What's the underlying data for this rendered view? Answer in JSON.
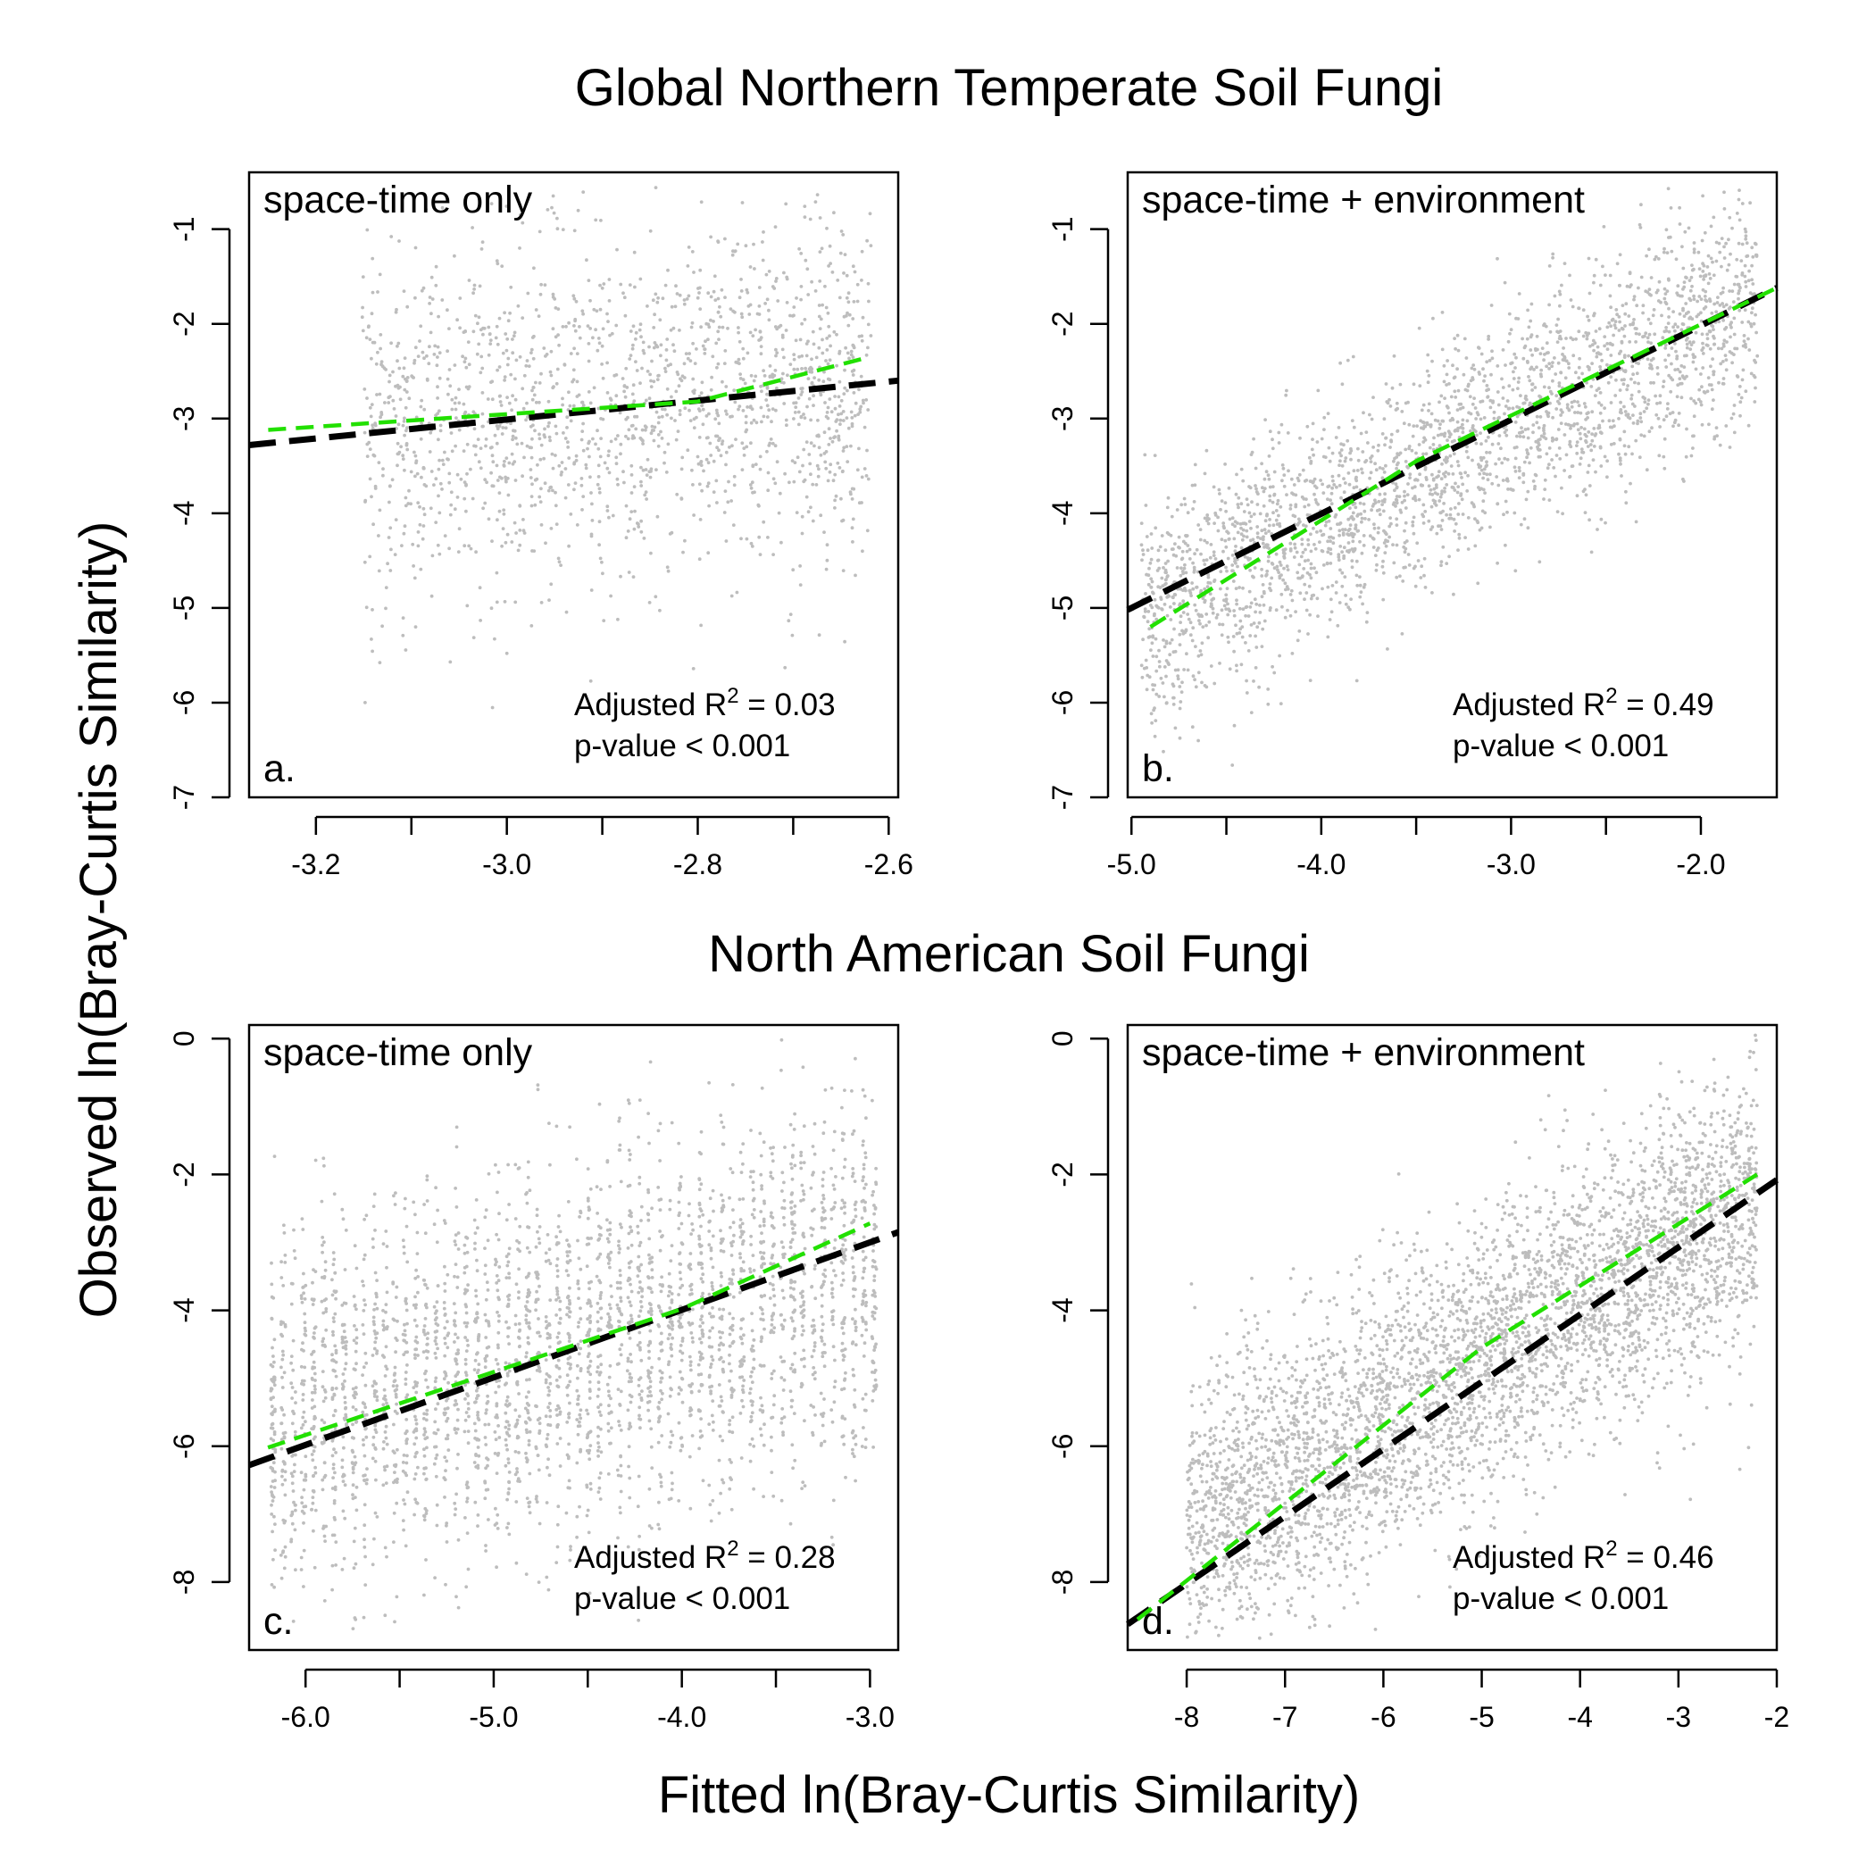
{
  "figure": {
    "row_titles": [
      "Global Northern Temperate Soil Fungi",
      "North American Soil Fungi"
    ],
    "xlabel": "Fitted ln(Bray-Curtis Similarity)",
    "ylabel": "Observed ln(Bray-Curtis Similarity)"
  },
  "chart_data": [
    {
      "type": "scatter",
      "panel": "a.",
      "model": "space-time only",
      "r2_label": "Adjusted R",
      "r2_exp": "2",
      "r2_value": " = 0.03",
      "p_text": "p-value < 0.001",
      "xlim": [
        -3.27,
        -2.59
      ],
      "ylim": [
        -7.0,
        -0.4
      ],
      "xticks": [
        -3.2,
        -3.1,
        -3.0,
        -2.9,
        -2.8,
        -2.7,
        -2.6
      ],
      "xtick_labels": [
        "-3.2",
        "",
        "-3.0",
        "",
        "-2.8",
        "",
        "-2.6"
      ],
      "yticks": [
        -7,
        -6,
        -5,
        -4,
        -3,
        -2,
        -1
      ],
      "ytick_labels": [
        "-7",
        "-6",
        "-5",
        "-4",
        "-3",
        "-2",
        "-1"
      ],
      "scatter": {
        "x_range": [
          -3.15,
          -2.62
        ],
        "y_center": [
          -3.2,
          -2.55
        ],
        "y_spread": 0.95,
        "count": 1700,
        "x_jitter": 0.006
      },
      "fit_black": {
        "x": [
          -3.27,
          -2.59
        ],
        "y": [
          -3.28,
          -2.6
        ]
      },
      "fit_green": {
        "x": [
          -3.25,
          -2.8,
          -2.62
        ],
        "y": [
          -3.12,
          -2.82,
          -2.35
        ]
      }
    },
    {
      "type": "scatter",
      "panel": "b.",
      "model": "space-time + environment",
      "r2_label": "Adjusted R",
      "r2_exp": "2",
      "r2_value": " = 0.49",
      "p_text": "p-value < 0.001",
      "xlim": [
        -5.02,
        -1.6
      ],
      "ylim": [
        -7.0,
        -0.4
      ],
      "xticks": [
        -5.0,
        -4.5,
        -4.0,
        -3.5,
        -3.0,
        -2.5,
        -2.0
      ],
      "xtick_labels": [
        "-5.0",
        "",
        "-4.0",
        "",
        "-3.0",
        "",
        "-2.0"
      ],
      "yticks": [
        -7,
        -6,
        -5,
        -4,
        -3,
        -2,
        -1
      ],
      "ytick_labels": [
        "-7",
        "-6",
        "-5",
        "-4",
        "-3",
        "-2",
        "-1"
      ],
      "scatter": {
        "x_range": [
          -4.95,
          -1.7
        ],
        "y_center": [
          -5.1,
          -1.7
        ],
        "y_spread": 0.6,
        "count": 2600,
        "x_jitter": 0
      },
      "fit_black": {
        "x": [
          -5.02,
          -1.6
        ],
        "y": [
          -5.02,
          -1.62
        ]
      },
      "fit_green": {
        "x": [
          -4.9,
          -3.5,
          -1.6
        ],
        "y": [
          -5.2,
          -3.45,
          -1.62
        ]
      }
    },
    {
      "type": "scatter",
      "panel": "c.",
      "model": "space-time only",
      "r2_label": "Adjusted R",
      "r2_exp": "2",
      "r2_value": " = 0.28",
      "p_text": "p-value < 0.001",
      "xlim": [
        -6.3,
        -2.85
      ],
      "ylim": [
        -9.0,
        0.2
      ],
      "xticks": [
        -6.0,
        -5.5,
        -5.0,
        -4.5,
        -4.0,
        -3.5,
        -3.0
      ],
      "xtick_labels": [
        "-6.0",
        "",
        "-5.0",
        "",
        "-4.0",
        "",
        "-3.0"
      ],
      "yticks": [
        -8,
        -6,
        -4,
        -2,
        0
      ],
      "ytick_labels": [
        "-8",
        "-6",
        "-4",
        "-2",
        "0"
      ],
      "scatter": {
        "x_range": [
          -6.2,
          -2.95
        ],
        "y_center": [
          -5.6,
          -3.5
        ],
        "y_spread": 1.35,
        "count": 3200,
        "x_jitter": 0.012
      },
      "fit_black": {
        "x": [
          -6.3,
          -2.85
        ],
        "y": [
          -6.28,
          -2.85
        ]
      },
      "fit_green": {
        "x": [
          -6.2,
          -4.0,
          -3.0
        ],
        "y": [
          -6.02,
          -3.98,
          -2.72
        ]
      }
    },
    {
      "type": "scatter",
      "panel": "d.",
      "model": "space-time + environment",
      "r2_label": "Adjusted R",
      "r2_exp": "2",
      "r2_value": " = 0.46",
      "p_text": "p-value < 0.001",
      "xlim": [
        -8.6,
        -2.0
      ],
      "ylim": [
        -9.0,
        0.2
      ],
      "xticks": [
        -8,
        -7,
        -6,
        -5,
        -4,
        -3,
        -2
      ],
      "xtick_labels": [
        "-8",
        "-7",
        "-6",
        "-5",
        "-4",
        "-3",
        "-2"
      ],
      "yticks": [
        -8,
        -6,
        -4,
        -2,
        0
      ],
      "ytick_labels": [
        "-8",
        "-6",
        "-4",
        "-2",
        "0"
      ],
      "scatter": {
        "x_range": [
          -8.0,
          -2.2
        ],
        "y_center": [
          -7.2,
          -2.3
        ],
        "y_spread": 1.05,
        "count": 4200,
        "x_jitter": 0
      },
      "fit_black": {
        "x": [
          -8.6,
          -2.0
        ],
        "y": [
          -8.62,
          -2.08
        ]
      },
      "fit_green": {
        "x": [
          -8.5,
          -5.0,
          -2.2
        ],
        "y": [
          -8.55,
          -4.55,
          -2.0
        ]
      }
    }
  ]
}
